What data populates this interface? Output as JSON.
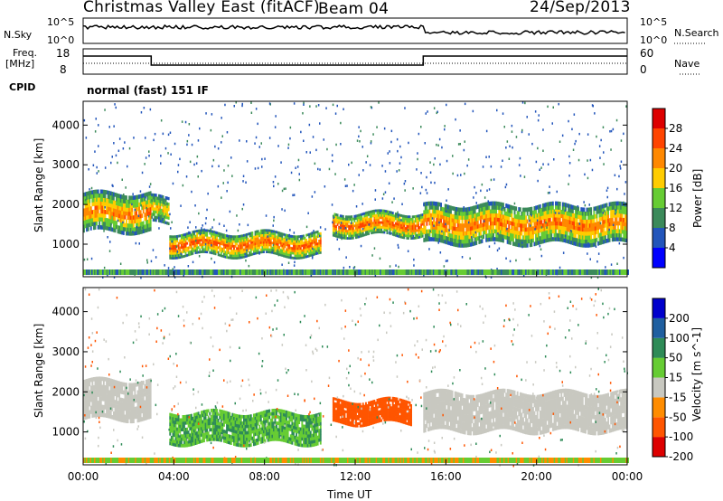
{
  "header": {
    "title": "Christmas Valley East (fitACF)",
    "beam": "Beam 04",
    "date": "24/Sep/2013"
  },
  "noise_panel": {
    "left_label": "N.Sky",
    "left_ticks": [
      "10^5",
      "10^0"
    ],
    "right_label": "N.Search",
    "right_ticks": [
      "10^5",
      "10^0"
    ]
  },
  "freq_panel": {
    "left_label_1": "Freq.",
    "left_label_2": "[MHz]",
    "left_ticks": [
      "18",
      "8"
    ],
    "right_label": "Nave",
    "right_ticks": [
      "60",
      "0"
    ]
  },
  "cpid": {
    "label": "CPID",
    "mode": "normal (fast) 151 IF"
  },
  "colors": {
    "power_scale": [
      "#0000ff",
      "#2255bb",
      "#3b8a5a",
      "#66cc33",
      "#ffcc00",
      "#ff8800",
      "#ff4400",
      "#dd0000"
    ],
    "velocity_scale": [
      "#0000cc",
      "#1f5fa0",
      "#2e8b57",
      "#66cc33",
      "#c8c8c0",
      "#ff8c00",
      "#ff5500",
      "#dd0000"
    ],
    "background": "#ffffff"
  },
  "chart_data": [
    {
      "type": "heatmap",
      "title": "",
      "xlabel": "",
      "ylabel": "Slant Range [km]",
      "yticks": [
        1000,
        2000,
        3000,
        4000
      ],
      "ylim": [
        180,
        4600
      ],
      "colorbar_label": "Power [dB]",
      "colorbar_ticks": [
        4,
        8,
        12,
        16,
        20,
        24,
        28
      ],
      "colorbar_range": [
        0,
        32
      ],
      "series": [
        {
          "x_start": 0.0,
          "x_end": 3.0,
          "range_start": 1300,
          "range_end": 2300,
          "value": 24
        },
        {
          "x_start": 3.0,
          "x_end": 3.8,
          "range_start": 1500,
          "range_end": 2200,
          "value": 20
        },
        {
          "x_start": 3.8,
          "x_end": 10.5,
          "range_start": 700,
          "range_end": 1300,
          "value": 26
        },
        {
          "x_start": 11.0,
          "x_end": 15.0,
          "range_start": 1200,
          "range_end": 1800,
          "value": 26
        },
        {
          "x_start": 15.0,
          "x_end": 24.0,
          "range_start": 1000,
          "range_end": 2000,
          "value": 24
        }
      ]
    },
    {
      "type": "heatmap",
      "title": "",
      "xlabel": "Time UT",
      "ylabel": "Slant Range [km]",
      "yticks": [
        1000,
        2000,
        3000,
        4000
      ],
      "ylim": [
        180,
        4600
      ],
      "xticks": [
        "00:00",
        "04:00",
        "08:00",
        "12:00",
        "16:00",
        "20:00",
        "00:00"
      ],
      "xlim": [
        0,
        24
      ],
      "colorbar_label": "Velocity [m s^-1]",
      "colorbar_ticks": [
        200,
        100,
        50,
        15,
        -15,
        -50,
        -100,
        -200
      ],
      "colorbar_range": [
        -250,
        250
      ],
      "series": [
        {
          "x_start": 0.0,
          "x_end": 3.0,
          "range_start": 1300,
          "range_end": 2300,
          "value": 0
        },
        {
          "x_start": 3.8,
          "x_end": 10.5,
          "range_start": 700,
          "range_end": 1500,
          "value": 30
        },
        {
          "x_start": 11.0,
          "x_end": 14.5,
          "range_start": 1200,
          "range_end": 1800,
          "value": -75
        },
        {
          "x_start": 15.0,
          "x_end": 24.0,
          "range_start": 1000,
          "range_end": 2000,
          "value": 0
        }
      ]
    }
  ]
}
